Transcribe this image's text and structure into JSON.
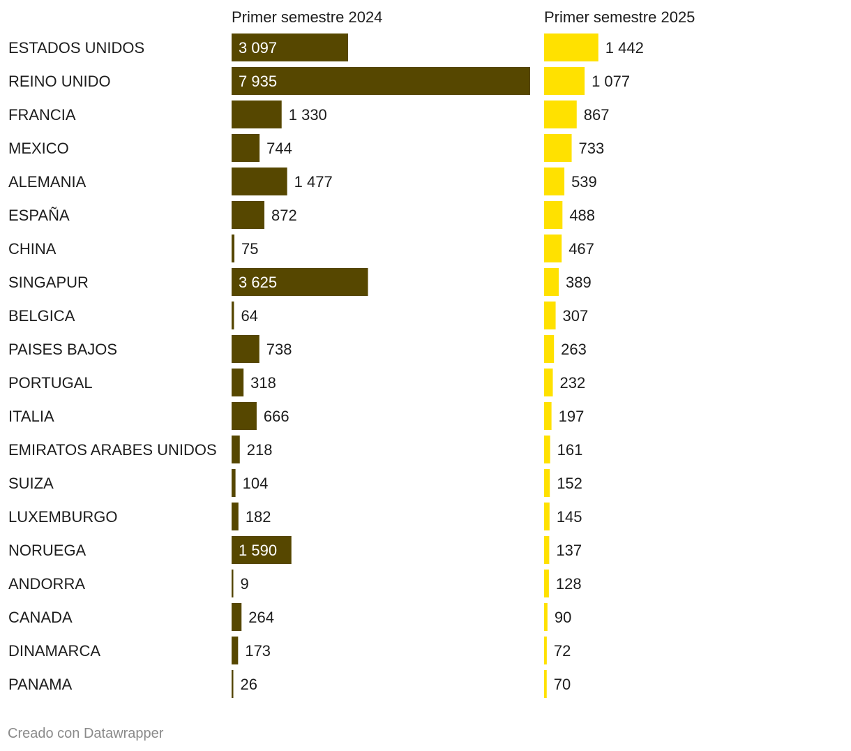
{
  "credit": "Creado con Datawrapper",
  "chart_data": {
    "type": "bar",
    "columns": [
      "Primer semestre 2024",
      "Primer semestre 2025"
    ],
    "categories": [
      "ESTADOS UNIDOS",
      "REINO UNIDO",
      "FRANCIA",
      "MEXICO",
      "ALEMANIA",
      "ESPAÑA",
      "CHINA",
      "SINGAPUR",
      "BELGICA",
      "PAISES BAJOS",
      "PORTUGAL",
      "ITALIA",
      "EMIRATOS ARABES UNIDOS",
      "SUIZA",
      "LUXEMBURGO",
      "NORUEGA",
      "ANDORRA",
      "CANADA",
      "DINAMARCA",
      "PANAMA"
    ],
    "series": [
      {
        "name": "Primer semestre 2024",
        "color": "#564700",
        "values": [
          3097,
          7935,
          1330,
          744,
          1477,
          872,
          75,
          3625,
          64,
          738,
          318,
          666,
          218,
          104,
          182,
          1590,
          9,
          264,
          173,
          26
        ],
        "labels": [
          "3 097",
          "7 935",
          "1 330",
          "744",
          "1 477",
          "872",
          "75",
          "3 625",
          "64",
          "738",
          "318",
          "666",
          "218",
          "104",
          "182",
          "1 590",
          "9",
          "264",
          "173",
          "26"
        ]
      },
      {
        "name": "Primer semestre 2025",
        "color": "#ffe100",
        "values": [
          1442,
          1077,
          867,
          733,
          539,
          488,
          467,
          389,
          307,
          263,
          232,
          197,
          161,
          152,
          145,
          137,
          128,
          90,
          72,
          70
        ],
        "labels": [
          "1 442",
          "1 077",
          "867",
          "733",
          "539",
          "488",
          "467",
          "389",
          "307",
          "263",
          "232",
          "197",
          "161",
          "152",
          "145",
          "137",
          "128",
          "90",
          "72",
          "70"
        ]
      }
    ]
  }
}
